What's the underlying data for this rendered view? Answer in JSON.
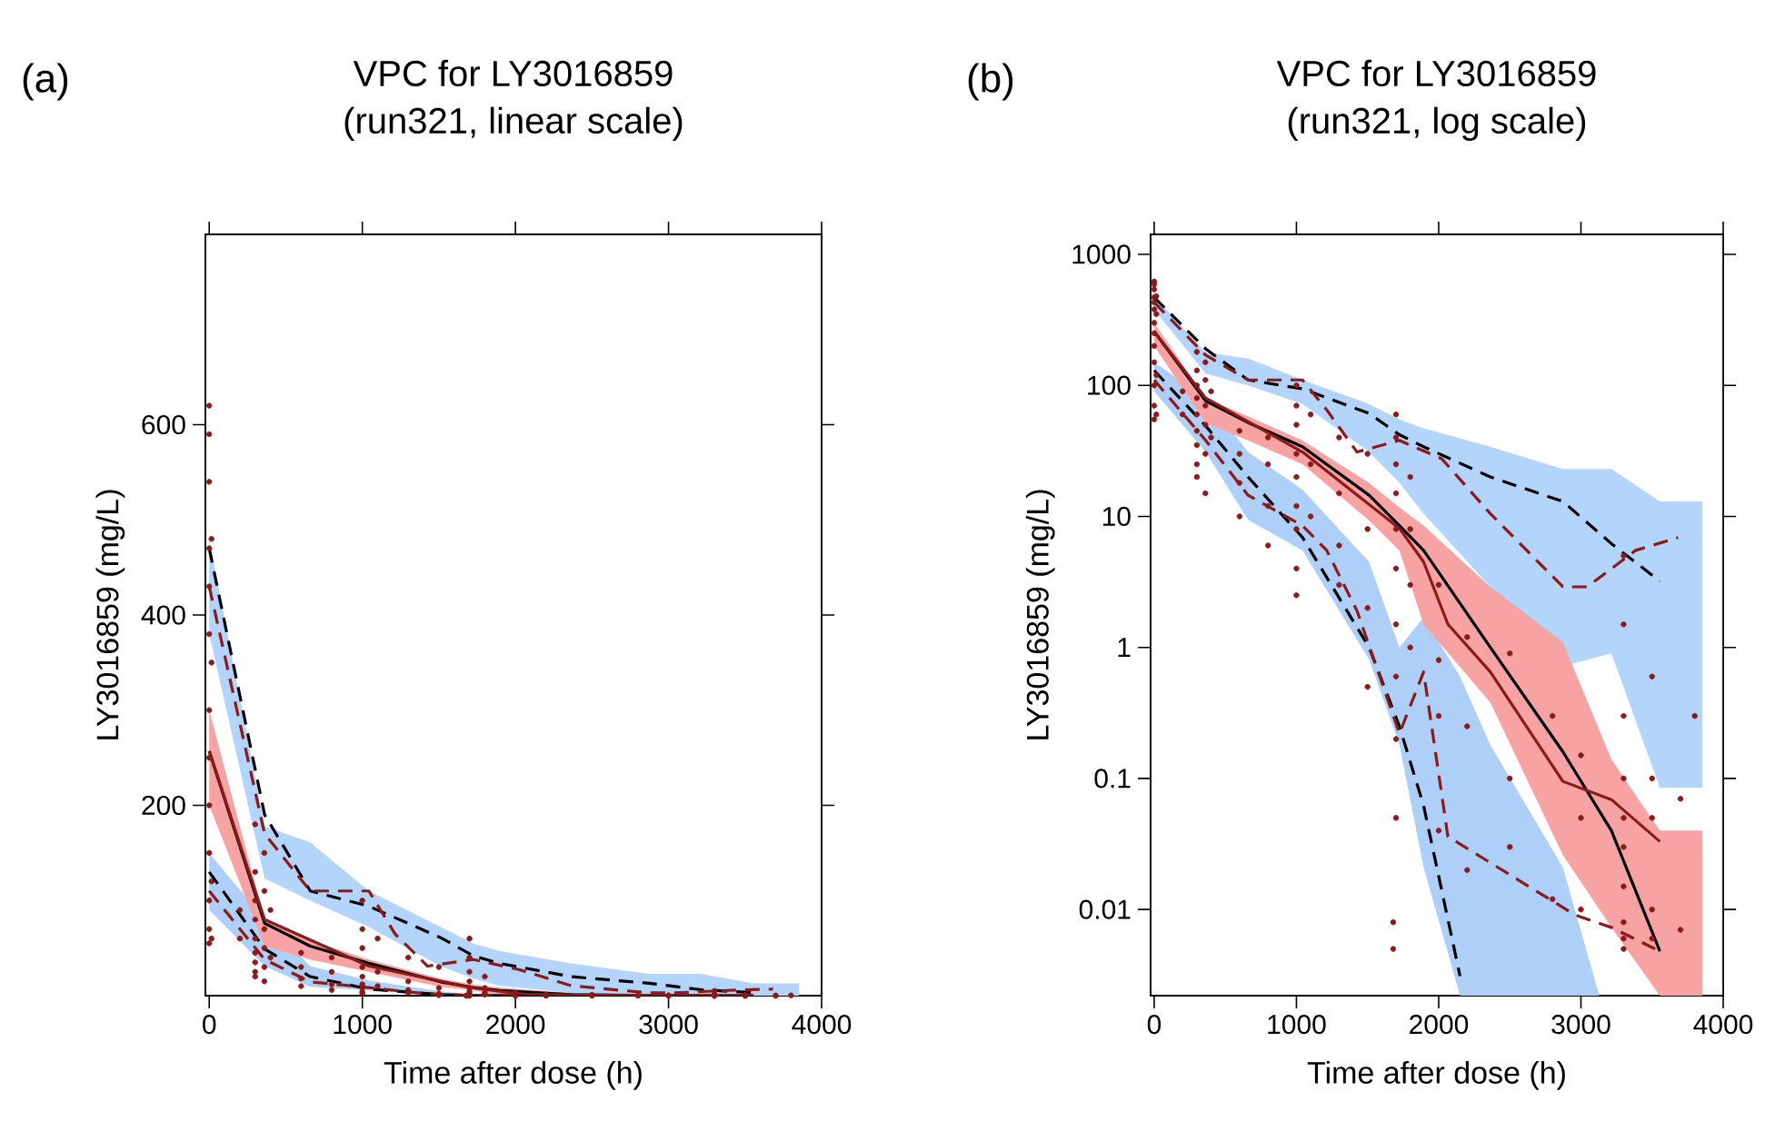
{
  "chart_data": [
    {
      "type": "line",
      "title": "VPC for LY3016859",
      "subtitle": "(run321, linear scale)",
      "xlabel": "Time after dose (h)",
      "ylabel": "LY3016859 (mg/L)",
      "annotations": [
        "(a)"
      ],
      "xlim": [
        -25,
        4000
      ],
      "ylim": [
        0,
        800
      ],
      "xticks": [
        0,
        1000,
        2000,
        3000,
        4000
      ],
      "yticks": [
        200,
        400,
        600
      ],
      "series": [
        {
          "color": "#b3d4fb",
          "x": [
            0,
            362,
            660,
            1043,
            1511,
            1724,
            1894,
            2363,
            2873,
            3214,
            3555,
            3853
          ],
          "values": [
            null,
            null,
            null,
            null,
            null,
            null,
            null,
            null,
            null,
            null,
            null,
            null
          ],
          "lower": [
            380,
            123,
            100,
            72,
            31,
            18,
            10.5,
            2.9,
            0.72,
            0.9,
            0.085,
            0.085
          ],
          "upper": [
            480,
            178,
            161,
            110,
            72,
            55,
            47,
            34,
            23,
            23,
            13,
            13
          ]
        },
        {
          "color": "#aed0f8",
          "x": [
            0,
            362,
            660,
            1043,
            1511,
            1724,
            1894,
            2150,
            2363,
            2873,
            3129
          ],
          "values": [
            null,
            null,
            null,
            null,
            null,
            null,
            null,
            null,
            null,
            null,
            null
          ],
          "lower": [
            90,
            31,
            9.4,
            5.5,
            0.81,
            0.18,
            0.021,
            0.0022,
            0.0022,
            0.0022,
            0.0022
          ],
          "upper": [
            150,
            80,
            31,
            16,
            4.5,
            1.0,
            1.7,
            0.6,
            0.18,
            0.021,
            0.0022
          ]
        },
        {
          "color": "#f7a3a3",
          "x": [
            0,
            362,
            660,
            1043,
            1511,
            1724,
            1894,
            2363,
            2873,
            3214,
            3555,
            3853
          ],
          "values": [
            null,
            null,
            null,
            null,
            null,
            null,
            null,
            null,
            null,
            null,
            null,
            null
          ],
          "lower": [
            200,
            52,
            38,
            25,
            9.3,
            5.5,
            1.5,
            0.38,
            0.026,
            0.0073,
            0.0022,
            0.0022
          ],
          "upper": [
            300,
            80,
            58,
            38,
            18,
            11.7,
            8.5,
            2.9,
            1.1,
            0.14,
            0.04,
            0.04
          ]
        },
        {
          "type": "scatter",
          "color": "#8b1a1a",
          "marker": "circle",
          "x": [
            0,
            0,
            0,
            0,
            0,
            0,
            0,
            0,
            0,
            0,
            0,
            0,
            0,
            15,
            15,
            15,
            15,
            200,
            200,
            300,
            300,
            300,
            300,
            300,
            300,
            300,
            300,
            300,
            360,
            360,
            360,
            360,
            360,
            360,
            400,
            400,
            600,
            600,
            600,
            600,
            800,
            800,
            800,
            800,
            1000,
            1000,
            1000,
            1000,
            1000,
            1000,
            1000,
            1000,
            1000,
            1100,
            1100,
            1100,
            1300,
            1300,
            1300,
            1300,
            1500,
            1500,
            1500,
            1500,
            1700,
            1700,
            1700,
            1700,
            1700,
            1700,
            1700,
            1700,
            1700,
            1700,
            1800,
            1800,
            1800,
            1800,
            1680,
            1680,
            2000,
            2000,
            2000,
            2200,
            2200,
            2200,
            2500,
            2500,
            2500,
            2800,
            2800,
            3000,
            3000,
            3000,
            3300,
            3300,
            3300,
            3300,
            3300,
            3300,
            3300,
            3300,
            3300,
            3500,
            3500,
            3500,
            3500,
            3500,
            3700,
            3700,
            3800
          ],
          "values": [
            620,
            590,
            540,
            470,
            430,
            380,
            300,
            250,
            200,
            150,
            100,
            70,
            55,
            480,
            350,
            120,
            60,
            90,
            60,
            180,
            130,
            100,
            80,
            60,
            45,
            35,
            25,
            20,
            150,
            110,
            70,
            50,
            30,
            15,
            90,
            40,
            45,
            30,
            18,
            10,
            40,
            25,
            12,
            6,
            100,
            70,
            50,
            30,
            20,
            12,
            8,
            4,
            2.5,
            60,
            25,
            10,
            40,
            15,
            6,
            3,
            30,
            8,
            2,
            0.5,
            60,
            40,
            25,
            15,
            8,
            4,
            1.5,
            0.6,
            0.2,
            0.05,
            20,
            8,
            3,
            1,
            0.008,
            0.005,
            3,
            0.3,
            0.04,
            1.2,
            0.25,
            0.02,
            0.9,
            0.1,
            0.03,
            0.3,
            0.012,
            0.05,
            0.15,
            0.01,
            5,
            1.5,
            0.1,
            0.05,
            0.03,
            0.015,
            0.008,
            0.006,
            0.005,
            0.6,
            0.1,
            0.05,
            0.01,
            0.006,
            0.07,
            0.007,
            0.3
          ]
        },
        {
          "color": "#000000",
          "line_style": "dashed",
          "x": [
            0,
            362,
            660,
            1043,
            1511,
            1724,
            1894,
            2363,
            2873,
            3214,
            3555
          ],
          "values": [
            470,
            190,
            110,
            94,
            61,
            42,
            34,
            20,
            13,
            6.2,
            3.2
          ]
        },
        {
          "color": "#000000",
          "line_style": "dashed",
          "x": [
            0,
            362,
            660,
            1043,
            1511,
            1724,
            1894,
            2150
          ],
          "values": [
            130,
            49,
            20,
            6.9,
            1.0,
            0.25,
            0.062,
            0.0031
          ]
        },
        {
          "color": "#000000",
          "line_style": "solid",
          "x": [
            0,
            362,
            660,
            1043,
            1511,
            1724,
            1894,
            2363,
            2873,
            3214,
            3555
          ],
          "values": [
            257,
            76,
            52,
            34,
            14.5,
            8.5,
            5.5,
            1.0,
            0.16,
            0.04,
            0.0048
          ]
        },
        {
          "color": "#8b1a1a",
          "line_style": "solid",
          "x": [
            0,
            362,
            1043,
            1724,
            1894,
            2065,
            2363,
            2873,
            3214,
            3555
          ],
          "values": [
            257,
            80,
            31,
            8.1,
            4.5,
            1.5,
            0.65,
            0.095,
            0.069,
            0.033
          ]
        },
        {
          "color": "#8b1a1a",
          "line_style": "dashed",
          "x": [
            0,
            362,
            660,
            1043,
            1213,
            1426,
            1724,
            2022,
            2363,
            2873,
            3044,
            3384,
            3683
          ],
          "values": [
            430,
            170,
            110,
            110,
            65,
            31,
            38,
            27.5,
            10.5,
            2.9,
            2.9,
            5.5,
            6.9
          ]
        },
        {
          "color": "#8b1a1a",
          "line_style": "dashed",
          "x": [
            0,
            362,
            660,
            1043,
            1213,
            1426,
            1724,
            1894,
            2065,
            2958,
            3214,
            3555
          ],
          "values": [
            110,
            38,
            14.5,
            8.5,
            5.5,
            1.9,
            0.22,
            0.65,
            0.036,
            0.0091,
            0.0073,
            0.0048
          ]
        }
      ]
    },
    {
      "type": "line",
      "title": "VPC for LY3016859",
      "subtitle": "(run321, log scale)",
      "xlabel": "Time after dose (h)",
      "ylabel": "LY3016859 (mg/L)",
      "annotations": [
        "(b)"
      ],
      "log": "y",
      "xlim": [
        -25,
        4000
      ],
      "ylim": [
        0.0022,
        1420
      ],
      "xticks": [
        0,
        1000,
        2000,
        3000,
        4000
      ],
      "yticks": [
        0.01,
        0.1,
        1,
        10,
        100,
        1000
      ],
      "series": [
        {
          "color": "#b3d4fb",
          "x": [
            0,
            362,
            660,
            1043,
            1511,
            1724,
            1894,
            2363,
            2873,
            3214,
            3555,
            3853
          ],
          "values": [
            null,
            null,
            null,
            null,
            null,
            null,
            null,
            null,
            null,
            null,
            null,
            null
          ],
          "lower": [
            380,
            123,
            100,
            72,
            31,
            18,
            10.5,
            2.9,
            0.72,
            0.9,
            0.085,
            0.085
          ],
          "upper": [
            480,
            178,
            161,
            110,
            72,
            55,
            47,
            34,
            23,
            23,
            13,
            13
          ]
        },
        {
          "color": "#aed0f8",
          "x": [
            0,
            362,
            660,
            1043,
            1511,
            1724,
            1894,
            2150,
            2363,
            2873,
            3129
          ],
          "values": [
            null,
            null,
            null,
            null,
            null,
            null,
            null,
            null,
            null,
            null,
            null
          ],
          "lower": [
            90,
            31,
            9.4,
            5.5,
            0.81,
            0.18,
            0.021,
            0.0022,
            0.0022,
            0.0022,
            0.0022
          ],
          "upper": [
            150,
            80,
            31,
            16,
            4.5,
            1.0,
            1.7,
            0.6,
            0.18,
            0.021,
            0.0022
          ]
        },
        {
          "color": "#f7a3a3",
          "x": [
            0,
            362,
            660,
            1043,
            1511,
            1724,
            1894,
            2363,
            2873,
            3214,
            3555,
            3853
          ],
          "values": [
            null,
            null,
            null,
            null,
            null,
            null,
            null,
            null,
            null,
            null,
            null,
            null
          ],
          "lower": [
            200,
            52,
            38,
            25,
            9.3,
            5.5,
            1.5,
            0.38,
            0.026,
            0.0073,
            0.0022,
            0.0022
          ],
          "upper": [
            300,
            80,
            58,
            38,
            18,
            11.7,
            8.5,
            2.9,
            1.1,
            0.14,
            0.04,
            0.04
          ]
        },
        {
          "type": "scatter",
          "color": "#8b1a1a",
          "marker": "circle",
          "x": [
            0,
            0,
            0,
            0,
            0,
            0,
            0,
            0,
            0,
            0,
            0,
            0,
            0,
            15,
            15,
            15,
            15,
            200,
            200,
            300,
            300,
            300,
            300,
            300,
            300,
            300,
            300,
            300,
            360,
            360,
            360,
            360,
            360,
            360,
            400,
            400,
            600,
            600,
            600,
            600,
            800,
            800,
            800,
            800,
            1000,
            1000,
            1000,
            1000,
            1000,
            1000,
            1000,
            1000,
            1000,
            1100,
            1100,
            1100,
            1300,
            1300,
            1300,
            1300,
            1500,
            1500,
            1500,
            1500,
            1700,
            1700,
            1700,
            1700,
            1700,
            1700,
            1700,
            1700,
            1700,
            1700,
            1800,
            1800,
            1800,
            1800,
            1680,
            1680,
            2000,
            2000,
            2000,
            2000,
            2200,
            2200,
            2200,
            2500,
            2500,
            2500,
            2800,
            2800,
            3000,
            3000,
            3000,
            3300,
            3300,
            3300,
            3300,
            3300,
            3300,
            3300,
            3300,
            3300,
            3300,
            3500,
            3500,
            3500,
            3500,
            3500,
            3700,
            3700,
            3800
          ],
          "values": [
            620,
            590,
            540,
            470,
            430,
            380,
            300,
            250,
            200,
            150,
            100,
            70,
            55,
            480,
            350,
            120,
            60,
            90,
            60,
            180,
            130,
            100,
            80,
            60,
            45,
            35,
            25,
            20,
            150,
            110,
            70,
            50,
            30,
            15,
            90,
            40,
            45,
            30,
            18,
            10,
            40,
            25,
            12,
            6,
            100,
            70,
            50,
            30,
            20,
            12,
            8,
            4,
            2.5,
            60,
            25,
            10,
            40,
            15,
            6,
            3,
            30,
            8,
            2,
            0.5,
            60,
            40,
            25,
            15,
            8,
            4,
            1.5,
            0.6,
            0.2,
            0.05,
            20,
            8,
            3,
            1,
            0.008,
            0.005,
            3,
            0.8,
            0.3,
            0.04,
            1.2,
            0.25,
            0.02,
            0.9,
            0.1,
            0.03,
            0.3,
            0.012,
            0.05,
            0.15,
            0.01,
            5,
            1.5,
            0.3,
            0.1,
            0.05,
            0.03,
            0.015,
            0.008,
            0.006,
            0.005,
            0.6,
            0.1,
            0.05,
            0.01,
            0.006,
            0.07,
            0.007,
            0.3
          ]
        },
        {
          "color": "#000000",
          "line_style": "dashed",
          "x": [
            0,
            362,
            660,
            1043,
            1511,
            1724,
            1894,
            2363,
            2873,
            3214,
            3555
          ],
          "values": [
            470,
            190,
            110,
            94,
            61,
            42,
            34,
            20,
            13,
            6.2,
            3.2
          ]
        },
        {
          "color": "#000000",
          "line_style": "dashed",
          "x": [
            0,
            362,
            660,
            1043,
            1511,
            1724,
            1894,
            2150
          ],
          "values": [
            130,
            49,
            20,
            6.9,
            1.0,
            0.25,
            0.062,
            0.0031
          ]
        },
        {
          "color": "#000000",
          "line_style": "solid",
          "x": [
            0,
            362,
            660,
            1043,
            1511,
            1724,
            1894,
            2363,
            2873,
            3214,
            3555
          ],
          "values": [
            257,
            76,
            52,
            34,
            14.5,
            8.5,
            5.5,
            1.0,
            0.16,
            0.04,
            0.0048
          ]
        },
        {
          "color": "#8b1a1a",
          "line_style": "solid",
          "x": [
            0,
            362,
            1043,
            1724,
            1894,
            2065,
            2363,
            2873,
            3214,
            3555
          ],
          "values": [
            257,
            80,
            31,
            8.1,
            4.5,
            1.5,
            0.65,
            0.095,
            0.069,
            0.033
          ]
        },
        {
          "color": "#8b1a1a",
          "line_style": "dashed",
          "x": [
            0,
            362,
            660,
            1043,
            1213,
            1426,
            1724,
            2022,
            2363,
            2873,
            3044,
            3384,
            3683
          ],
          "values": [
            430,
            170,
            110,
            110,
            65,
            31,
            38,
            27.5,
            10.5,
            2.9,
            2.9,
            5.5,
            6.9
          ]
        },
        {
          "color": "#8b1a1a",
          "line_style": "dashed",
          "x": [
            0,
            362,
            660,
            1043,
            1213,
            1426,
            1724,
            1894,
            2065,
            2958,
            3214,
            3555
          ],
          "values": [
            110,
            38,
            14.5,
            8.5,
            5.5,
            1.9,
            0.22,
            0.65,
            0.036,
            0.0091,
            0.0073,
            0.0048
          ]
        }
      ]
    }
  ]
}
